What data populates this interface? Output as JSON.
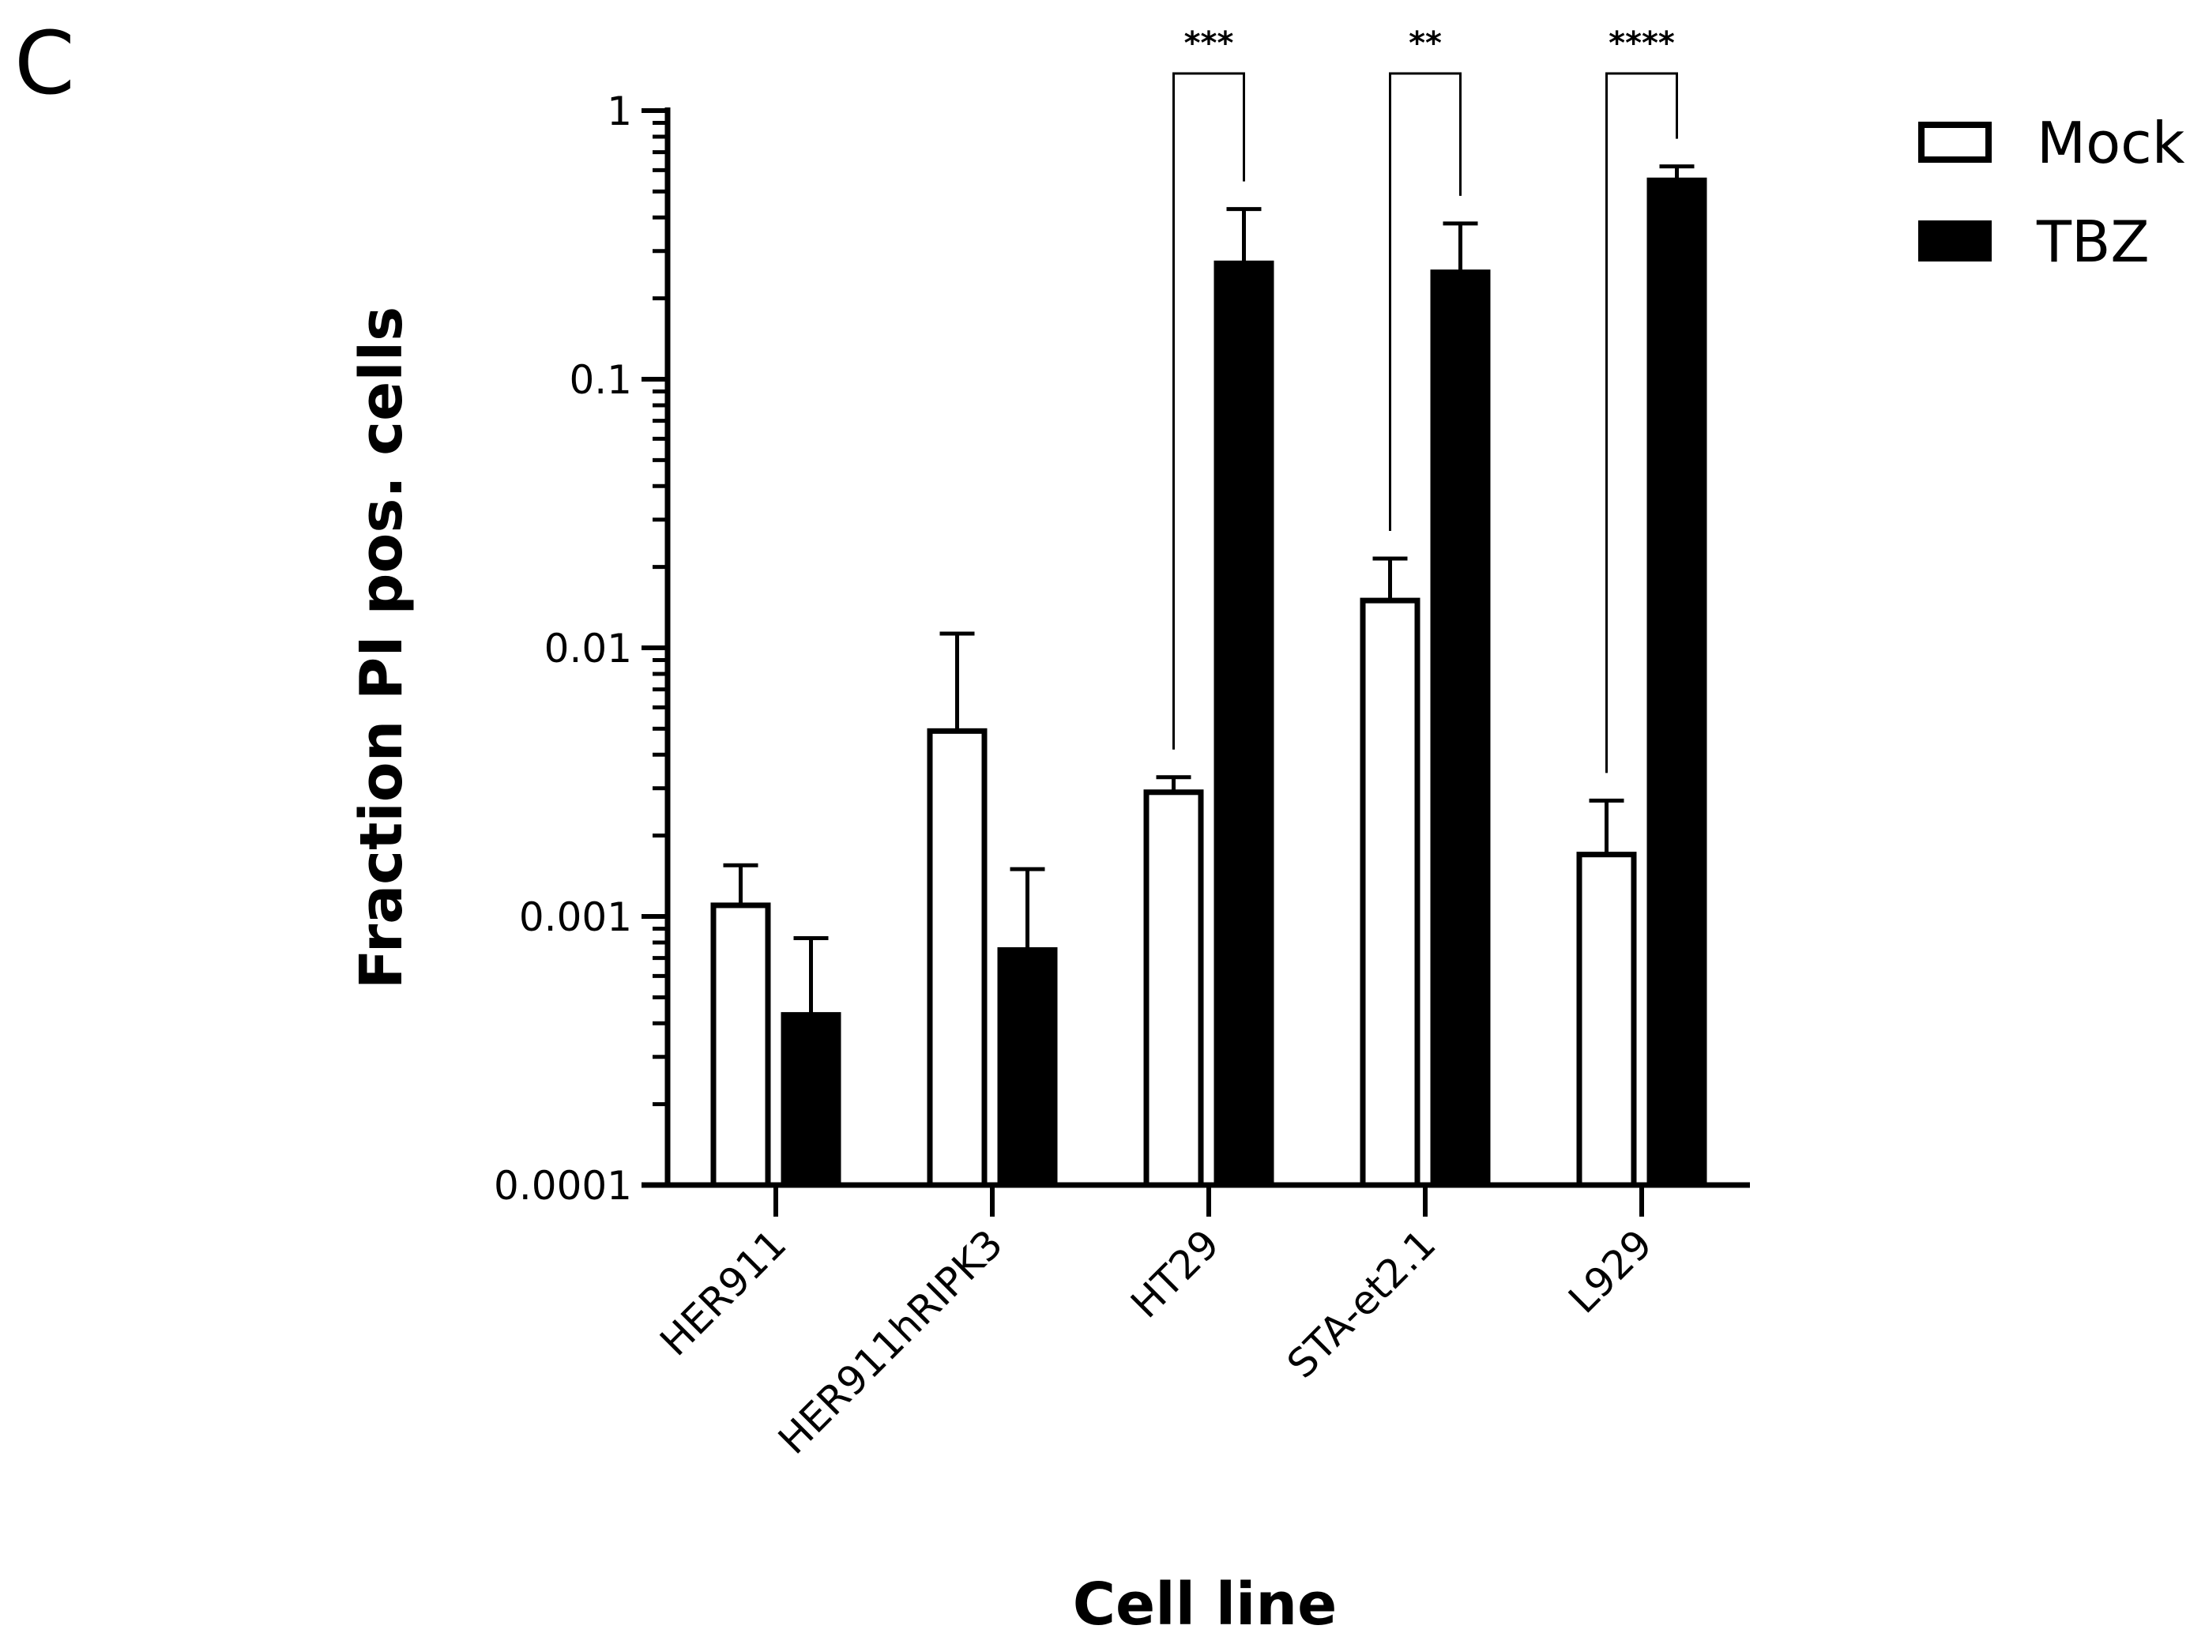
{
  "panel_label": "C",
  "chart_data": {
    "type": "bar",
    "title": "",
    "xlabel": "Cell line",
    "ylabel": "Fraction PI pos. cells",
    "yscale": "log",
    "ylim": [
      0.0001,
      1
    ],
    "yticks": [
      {
        "value": 0.0001,
        "label": "0.0001"
      },
      {
        "value": 0.001,
        "label": "0.001"
      },
      {
        "value": 0.01,
        "label": "0.01"
      },
      {
        "value": 0.1,
        "label": "0.1"
      },
      {
        "value": 1,
        "label": "1"
      }
    ],
    "categories": [
      "HER911",
      "HER911hRIPK3",
      "HT29",
      "STA-et2.1",
      "L929"
    ],
    "series": [
      {
        "name": "Mock",
        "color": "#ffffff",
        "edge": "#000000",
        "values": [
          0.0011,
          0.0049,
          0.0029,
          0.015,
          0.0017
        ],
        "error_upper": [
          0.00155,
          0.0113,
          0.0033,
          0.0215,
          0.0027
        ]
      },
      {
        "name": "TBZ",
        "color": "#000000",
        "edge": "#000000",
        "values": [
          0.00043,
          0.00075,
          0.27,
          0.25,
          0.55
        ],
        "error_upper": [
          0.00083,
          0.0015,
          0.43,
          0.38,
          0.62
        ]
      }
    ],
    "significance": [
      {
        "category": "HT29",
        "label": "***"
      },
      {
        "category": "STA-et2.1",
        "label": "**"
      },
      {
        "category": "L929",
        "label": "****"
      }
    ],
    "legend_position": "top-right",
    "grid": false
  }
}
